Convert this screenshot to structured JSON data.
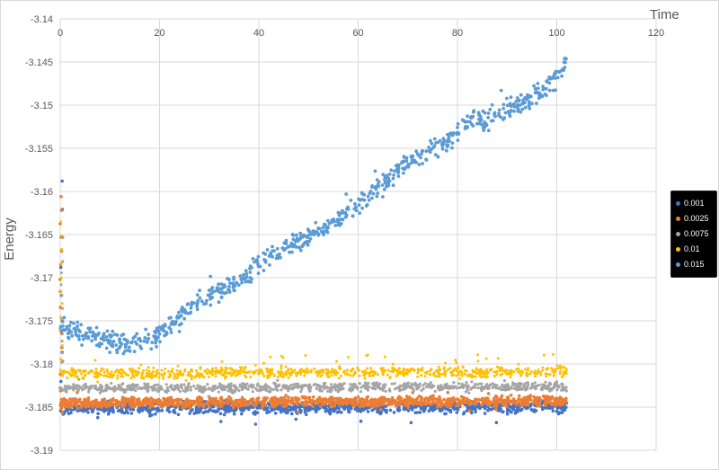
{
  "chart_data": {
    "type": "scatter",
    "title": "",
    "xlabel": "Time",
    "ylabel": "Energy",
    "xlim": [
      0,
      120
    ],
    "ylim": [
      -3.19,
      -3.14
    ],
    "x_ticks": [
      0,
      20,
      40,
      60,
      80,
      100,
      120
    ],
    "y_ticks": [
      "-3.14",
      "-3.145",
      "-3.15",
      "-3.155",
      "-3.16",
      "-3.165",
      "-3.17",
      "-3.175",
      "-3.18",
      "-3.185",
      "-3.19"
    ],
    "grid": true,
    "grid_color": "#D9D9D9",
    "axis_text_color": "#595959",
    "legend_position": "right",
    "legend_bg": "#000000",
    "legend_text_color": "#FFFFFF",
    "series": [
      {
        "name": "0.001",
        "color": "#4472C4",
        "marker_size": 1.8,
        "n_points": 1000,
        "x_max": 102,
        "noise": 0.0009,
        "outlier_rate": 0.02,
        "outlier_mag": 2.0,
        "outlier_bias": -0.0003,
        "seed": 11,
        "trend": [
          [
            0,
            -3.1851
          ],
          [
            102,
            -3.1849
          ]
        ],
        "transient": {
          "x": 0.2,
          "y_top": -3.1588,
          "count": 9
        }
      },
      {
        "name": "0.0025",
        "color": "#ED7D31",
        "marker_size": 1.8,
        "n_points": 1100,
        "x_max": 102,
        "noise": 0.0007,
        "outlier_rate": 0.02,
        "outlier_mag": 1.8,
        "outlier_bias": 0,
        "seed": 22,
        "trend": [
          [
            0,
            -3.1845
          ],
          [
            102,
            -3.1843
          ]
        ],
        "transient": {
          "x": 0.2,
          "y_top": -3.1606,
          "count": 16
        }
      },
      {
        "name": "0.0075",
        "color": "#A5A5A5",
        "marker_size": 1.6,
        "n_points": 800,
        "x_max": 102,
        "noise": 0.0006,
        "outlier_rate": 0.03,
        "outlier_mag": 1.8,
        "outlier_bias": 0,
        "seed": 33,
        "trend": [
          [
            0,
            -3.1828
          ],
          [
            102,
            -3.1826
          ]
        ],
        "transient": {
          "x": 0.2,
          "y_top": -3.1668,
          "count": 13
        }
      },
      {
        "name": "0.01",
        "color": "#FFC000",
        "marker_size": 1.5,
        "n_points": 800,
        "x_max": 102,
        "noise": 0.0007,
        "outlier_rate": 0.07,
        "outlier_mag": 2.2,
        "outlier_bias": 0.0005,
        "seed": 44,
        "trend": [
          [
            0,
            -3.1811
          ],
          [
            102,
            -3.1809
          ]
        ],
        "transient": {
          "x": 0.2,
          "y_top": -3.1635,
          "count": 12
        }
      },
      {
        "name": "0.015",
        "color": "#5B9BD5",
        "marker_size": 1.9,
        "n_points": 750,
        "x_max": 102,
        "noise": 0.0014,
        "outlier_rate": 0.03,
        "outlier_mag": 2.0,
        "outlier_bias": 0,
        "seed": 55,
        "trend": [
          [
            0,
            -3.1757
          ],
          [
            6,
            -3.1769
          ],
          [
            12,
            -3.1776
          ],
          [
            16,
            -3.1778
          ],
          [
            20,
            -3.1767
          ],
          [
            24,
            -3.1746
          ],
          [
            28,
            -3.1728
          ],
          [
            32,
            -3.1716
          ],
          [
            36,
            -3.1703
          ],
          [
            40,
            -3.1684
          ],
          [
            44,
            -3.167
          ],
          [
            48,
            -3.1657
          ],
          [
            52,
            -3.1646
          ],
          [
            56,
            -3.1632
          ],
          [
            60,
            -3.1617
          ],
          [
            64,
            -3.1598
          ],
          [
            68,
            -3.1576
          ],
          [
            72,
            -3.1558
          ],
          [
            76,
            -3.1549
          ],
          [
            80,
            -3.1532
          ],
          [
            83,
            -3.1513
          ],
          [
            86,
            -3.1519
          ],
          [
            89,
            -3.1507
          ],
          [
            92,
            -3.15
          ],
          [
            95,
            -3.1491
          ],
          [
            98,
            -3.1479
          ],
          [
            100,
            -3.1468
          ],
          [
            102,
            -3.1449
          ]
        ]
      }
    ]
  }
}
